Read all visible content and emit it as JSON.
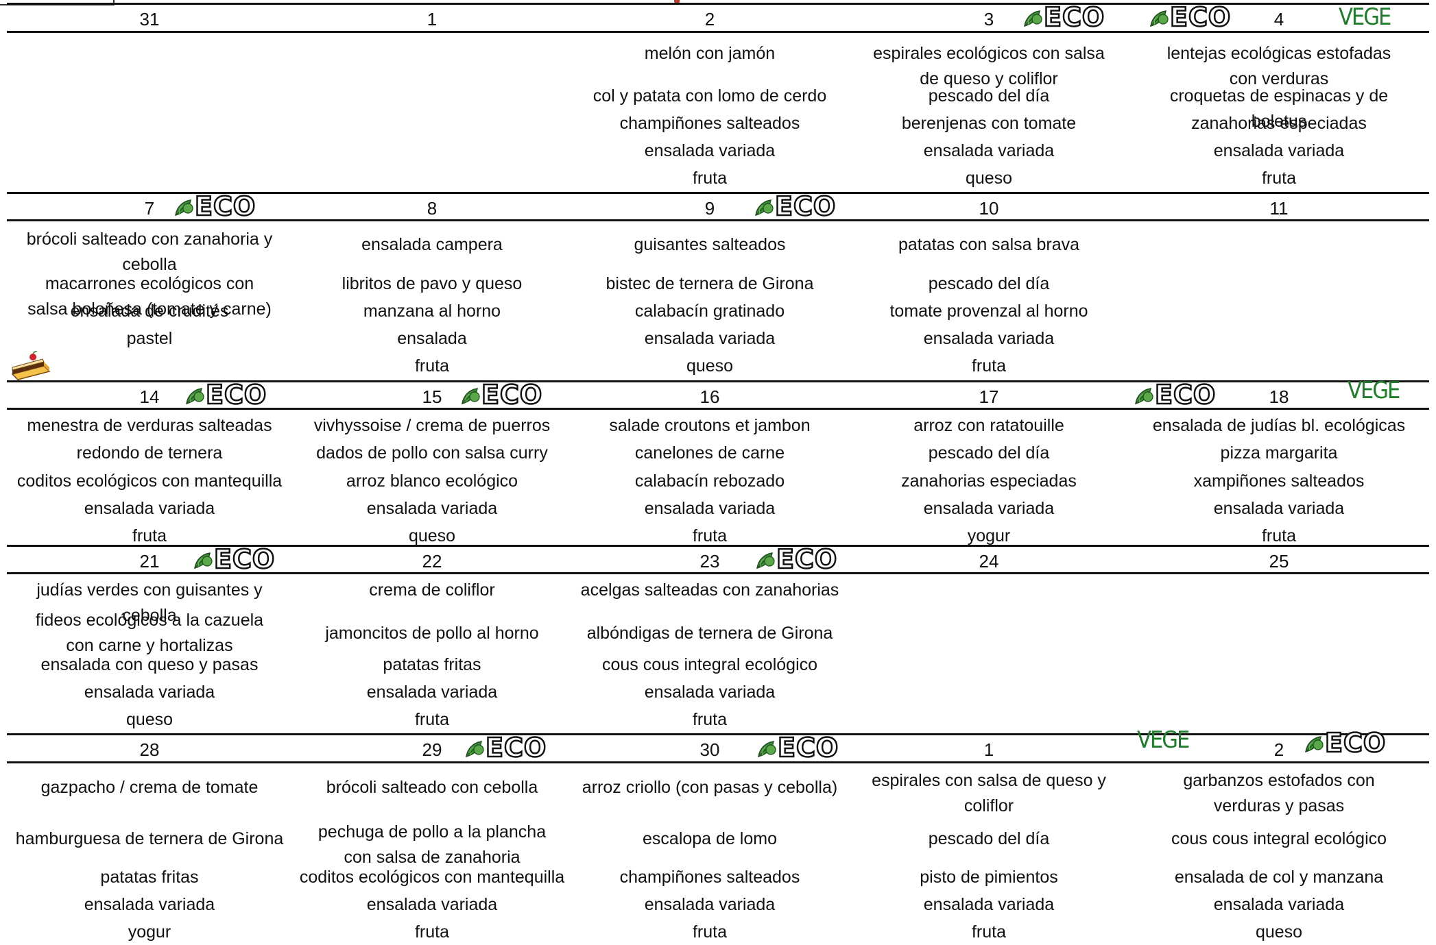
{
  "badges": {
    "eco_label": "ECO",
    "vege_label": "VEGE"
  },
  "weeks": [
    {
      "days": [
        {
          "day": "31",
          "dishes": []
        },
        {
          "day": "1",
          "dishes": []
        },
        {
          "day": "2",
          "dishes": [
            "melón con jamón",
            "col y patata con lomo de cerdo",
            "champiñones salteados",
            "ensalada variada",
            "fruta"
          ]
        },
        {
          "day": "3",
          "dishes": [
            "espirales ecológicos con salsa de queso y coliflor",
            "pescado del día",
            "berenjenas con tomate",
            "ensalada variada",
            "queso"
          ]
        },
        {
          "day": "4",
          "dishes": [
            "lentejas ecológicas estofadas con verduras",
            "croquetas de espinacas y de boletus",
            "zanahorias especiadas",
            "ensalada variada",
            "fruta"
          ]
        }
      ]
    },
    {
      "days": [
        {
          "day": "7",
          "dishes": [
            "brócoli salteado con zanahoria y cebolla",
            "macarrones ecológicos con salsa boloñesa (tomate y carne)",
            "ensalada de crudités",
            "pastel"
          ]
        },
        {
          "day": "8",
          "dishes": [
            "ensalada campera",
            "libritos de pavo y queso",
            "manzana al horno",
            "ensalada",
            "fruta"
          ]
        },
        {
          "day": "9",
          "dishes": [
            "guisantes salteados",
            "bistec de ternera de Girona",
            "calabacín gratinado",
            "ensalada variada",
            "queso"
          ]
        },
        {
          "day": "10",
          "dishes": [
            "patatas con salsa brava",
            "pescado del día",
            "tomate provenzal al horno",
            "ensalada variada",
            "fruta"
          ]
        },
        {
          "day": "11",
          "dishes": []
        }
      ]
    },
    {
      "days": [
        {
          "day": "14",
          "dishes": [
            "menestra de verduras salteadas",
            "redondo de ternera",
            "coditos ecológicos con mantequilla",
            "ensalada variada",
            "fruta"
          ]
        },
        {
          "day": "15",
          "dishes": [
            "vivhyssoise / crema de puerros",
            "dados de pollo con salsa curry",
            "arroz blanco ecológico",
            "ensalada variada",
            "queso"
          ]
        },
        {
          "day": "16",
          "dishes": [
            "salade croutons et jambon",
            "canelones de carne",
            "calabacín rebozado",
            "ensalada variada",
            "fruta"
          ]
        },
        {
          "day": "17",
          "dishes": [
            "arroz con ratatouille",
            "pescado del día",
            "zanahorias especiadas",
            "ensalada variada",
            "yogur"
          ]
        },
        {
          "day": "18",
          "dishes": [
            "ensalada de judías bl. ecológicas",
            "pizza margarita",
            "xampiñones salteados",
            "ensalada variada",
            "fruta"
          ]
        }
      ]
    },
    {
      "days": [
        {
          "day": "21",
          "dishes": [
            "judías verdes con guisantes y cebolla",
            "fideos ecológicos a la cazuela con carne y hortalizas",
            "ensalada con queso y pasas",
            "ensalada variada",
            "queso"
          ]
        },
        {
          "day": "22",
          "dishes": [
            "crema de coliflor",
            "jamoncitos de pollo al horno",
            "patatas fritas",
            "ensalada variada",
            "fruta"
          ]
        },
        {
          "day": "23",
          "dishes": [
            "acelgas salteadas con zanahorias",
            "albóndigas de ternera de Girona",
            "cous cous integral ecológico",
            "ensalada variada",
            "fruta"
          ]
        },
        {
          "day": "24",
          "dishes": []
        },
        {
          "day": "25",
          "dishes": []
        }
      ]
    },
    {
      "days": [
        {
          "day": "28",
          "dishes": [
            "gazpacho / crema de tomate",
            "hamburguesa de ternera de Girona",
            "patatas fritas",
            "ensalada variada",
            "yogur"
          ]
        },
        {
          "day": "29",
          "dishes": [
            "brócoli salteado con cebolla",
            "pechuga de pollo a la plancha con salsa de zanahoria",
            "coditos ecológicos con mantequilla",
            "ensalada variada",
            "fruta"
          ]
        },
        {
          "day": "30",
          "dishes": [
            "arroz criollo (con pasas y cebolla)",
            "escalopa de lomo",
            "champiñones salteados",
            "ensalada variada",
            "fruta"
          ]
        },
        {
          "day": "1",
          "dishes": [
            "espirales con salsa de queso y coliflor",
            "pescado del día",
            "pisto de pimientos",
            "ensalada variada",
            "fruta"
          ]
        },
        {
          "day": "2",
          "dishes": [
            "garbanzos estofados con verduras y pasas",
            "cous cous integral ecológico",
            "ensalada de col y manzana",
            "ensalada variada",
            "queso"
          ]
        }
      ]
    }
  ]
}
